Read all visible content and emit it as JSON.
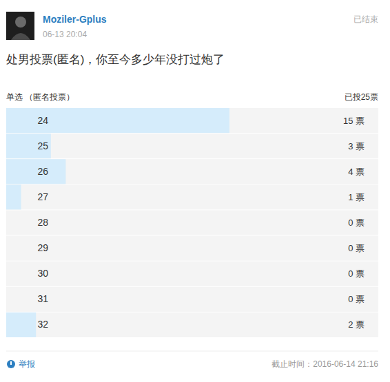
{
  "page": {
    "user": "Moziler-Gplus",
    "date": "06-13 20:04",
    "status": "已结束",
    "report": "举报",
    "deadline": "截止时间：2016-06-14 21:16"
  },
  "chart_data": {
    "type": "bar",
    "orientation": "horizontal",
    "title": "处男投票(匿名)，你至今多少年没打过炮了",
    "subtitle": "单选 （匿名投票）",
    "annotations": [
      "已投25票"
    ],
    "categories": [
      "24",
      "25",
      "26",
      "27",
      "28",
      "29",
      "30",
      "31",
      "32"
    ],
    "values": [
      15,
      3,
      4,
      1,
      0,
      0,
      0,
      0,
      2
    ],
    "value_labels": [
      "15 票",
      "3 票",
      "4 票",
      "1 票",
      "0 票",
      "0 票",
      "0 票",
      "0 票",
      "2 票"
    ],
    "xlim": [
      0,
      25
    ],
    "color": "#d5ecfb",
    "data_labels": true,
    "tick_labels": "y",
    "grid": false
  }
}
